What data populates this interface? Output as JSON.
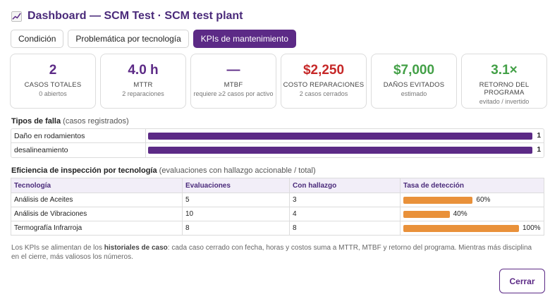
{
  "header": {
    "icon": "chart-increasing-icon",
    "title": "Dashboard — SCM Test · SCM test plant"
  },
  "tabs": [
    {
      "label": "Condición",
      "active": false
    },
    {
      "label": "Problemática por tecnología",
      "active": false
    },
    {
      "label": "KPIs de mantenimiento",
      "active": true
    }
  ],
  "kpis": [
    {
      "value": "2",
      "label": "CASOS TOTALES",
      "sub": "0 abiertos",
      "color": "#5c2a86"
    },
    {
      "value": "4.0 h",
      "label": "MTTR",
      "sub": "2 reparaciones",
      "color": "#5c2a86"
    },
    {
      "value": "—",
      "label": "MTBF",
      "sub": "requiere ≥2 casos por activo",
      "color": "#5c2a86"
    },
    {
      "value": "$2,250",
      "label": "COSTO REPARACIONES",
      "sub": "2 casos cerrados",
      "color": "#c62828"
    },
    {
      "value": "$7,000",
      "label": "DAÑOS EVITADOS",
      "sub": "estimado",
      "color": "#43a047"
    },
    {
      "value": "3.1×",
      "label": "RETORNO DEL PROGRAMA",
      "sub": "evitado / invertido",
      "color": "#43a047"
    }
  ],
  "failure_types": {
    "title": "Tipos de falla",
    "subtitle": "(casos registrados)",
    "max": 1,
    "rows": [
      {
        "name": "Daño en rodamientos",
        "count": 1
      },
      {
        "name": "desalineamiento",
        "count": 1
      }
    ]
  },
  "inspection": {
    "title": "Eficiencia de inspección por tecnología",
    "subtitle": "(evaluaciones con hallazgo accionable / total)",
    "headers": [
      "Tecnología",
      "Evaluaciones",
      "Con hallazgo",
      "Tasa de detección"
    ],
    "rows": [
      {
        "tech": "Análisis de Aceites",
        "evals": "5",
        "found": "3",
        "rate": 60,
        "rate_label": "60%"
      },
      {
        "tech": "Análisis de Vibraciones",
        "evals": "10",
        "found": "4",
        "rate": 40,
        "rate_label": "40%"
      },
      {
        "tech": "Termografía Infrarroja",
        "evals": "8",
        "found": "8",
        "rate": 100,
        "rate_label": "100%"
      }
    ]
  },
  "note": {
    "pre": "Los KPIs se alimentan de los ",
    "bold": "historiales de caso",
    "post": ": cada caso cerrado con fecha, horas y costos suma a MTTR, MTBF y retorno del programa. Mientras más disciplina en el cierre, más valiosos los números."
  },
  "footer": {
    "close_label": "Cerrar"
  }
}
